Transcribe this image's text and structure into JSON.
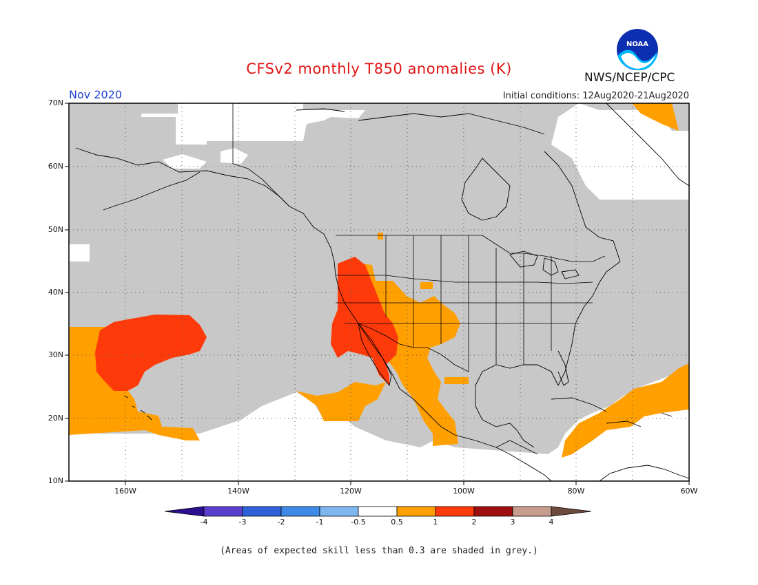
{
  "title": "CFSv2 monthly T850 anomalies (K)",
  "agency": "NWS/NCEP/CPC",
  "logo_text": "NOAA",
  "month": "Nov 2020",
  "initial_conditions": "Initial conditions: 12Aug2020-21Aug2020",
  "footnote": "(Areas of expected skill less than 0.3 are shaded in grey.)",
  "lat_labels": [
    "70N",
    "60N",
    "50N",
    "40N",
    "30N",
    "20N",
    "10N"
  ],
  "lon_labels": [
    "160W",
    "140W",
    "120W",
    "100W",
    "80W",
    "60W"
  ],
  "colorbar": {
    "labels": [
      "-4",
      "-3",
      "-2",
      "-1",
      "-0.5",
      "0.5",
      "1",
      "2",
      "3",
      "4"
    ],
    "colors": [
      "#2c0f8f",
      "#5a3fcf",
      "#2f62d8",
      "#3e8ae6",
      "#7eb6f0",
      "#ffffff",
      "#ff9f00",
      "#ff3a0a",
      "#9e0f0f",
      "#c79d8e",
      "#6e4a3c"
    ]
  },
  "colors": {
    "skill_grey": "#c8c8c8",
    "anom_0_5_to_1": "#ff9f00",
    "anom_1_to_2": "#ff3a0a",
    "title_red": "#e11414",
    "month_blue": "#1d3fd1"
  }
}
